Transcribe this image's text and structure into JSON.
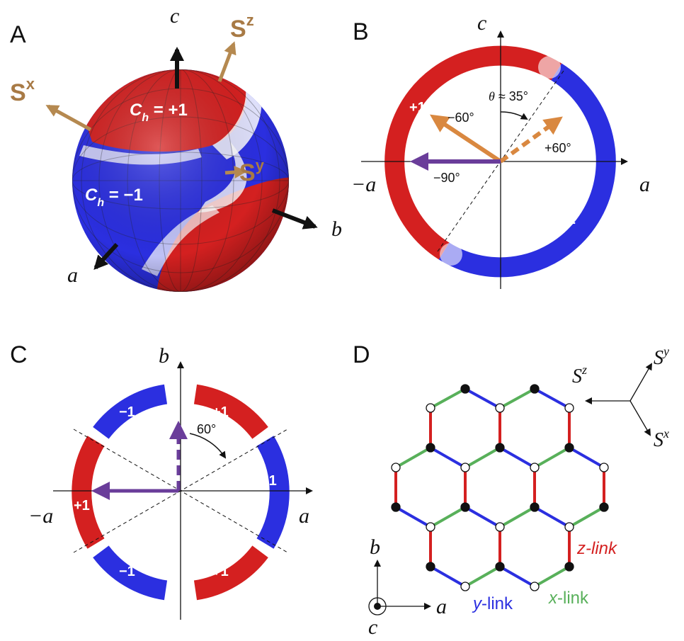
{
  "panels": {
    "A": {
      "letter": "A",
      "axis_c": "c",
      "axis_a": "a",
      "axis_b": "b",
      "spin_z": "S",
      "spin_z_sup": "z",
      "spin_x": "S",
      "spin_x_sup": "x",
      "spin_y": "S",
      "spin_y_sup": "y",
      "ch_plus_prefix": "C",
      "ch_plus_sub": "h",
      "ch_plus_value": " = +1",
      "ch_minus_prefix": "C",
      "ch_minus_sub": "h",
      "ch_minus_value": " = −1"
    },
    "B": {
      "letter": "B",
      "axis_c": "c",
      "axis_a_pos": "a",
      "axis_a_neg": "−a",
      "label_plus": "+1",
      "label_minus": "−1",
      "theta_sym": "θ",
      "theta_text": " ≈ 35°",
      "angle_m60": "−60°",
      "angle_p60": "+60°",
      "angle_m90": "−90°"
    },
    "C": {
      "letter": "C",
      "axis_b": "b",
      "axis_a_pos": "a",
      "axis_a_neg": "−a",
      "label_tl": "−1",
      "label_tr": "+1",
      "label_r": "−1",
      "label_l": "+1",
      "label_bl": "−1",
      "label_br": "+1",
      "angle_60": "60°"
    },
    "D": {
      "letter": "D",
      "spin_z": "S",
      "spin_z_sup": "z",
      "spin_y": "S",
      "spin_y_sup": "y",
      "spin_x": "S",
      "spin_x_sup": "x",
      "z_link": "z-link",
      "x_link_pre": "x",
      "x_link_post": "-link",
      "y_link_pre": "y",
      "y_link_post": "-link",
      "axis_b": "b",
      "axis_a": "a",
      "axis_c": "c"
    }
  },
  "colors": {
    "red": "#d42020",
    "blue": "#2b2fe0",
    "green": "#58b05a",
    "orange": "#d98840",
    "purple": "#6a3d9a",
    "spin_brown": "#a87a45"
  }
}
